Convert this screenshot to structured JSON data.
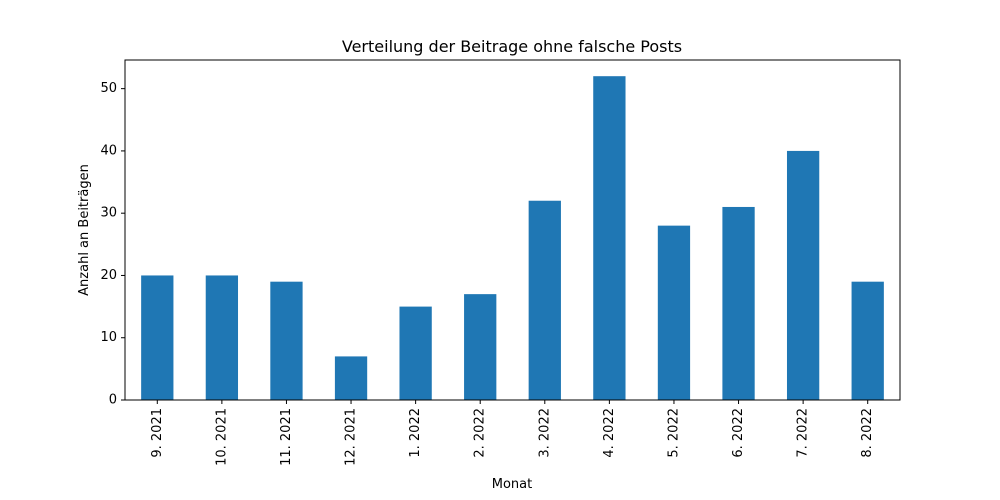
{
  "chart_data": {
    "type": "bar",
    "title": "Verteilung der Beitrage ohne falsche Posts",
    "xlabel": "Monat",
    "ylabel": "Anzahl an Beiträgen",
    "categories": [
      "9. 2021",
      "10. 2021",
      "11. 2021",
      "12. 2021",
      "1. 2022",
      "2. 2022",
      "3. 2022",
      "4. 2022",
      "5. 2022",
      "6. 2022",
      "7. 2022",
      "8. 2022"
    ],
    "values": [
      20,
      20,
      19,
      7,
      15,
      17,
      32,
      52,
      28,
      31,
      40,
      19
    ],
    "ylim": [
      0,
      54.6
    ],
    "yticks": [
      0,
      10,
      20,
      30,
      40,
      50
    ],
    "bar_color": "#1f77b4",
    "grid": false,
    "legend": "none"
  }
}
